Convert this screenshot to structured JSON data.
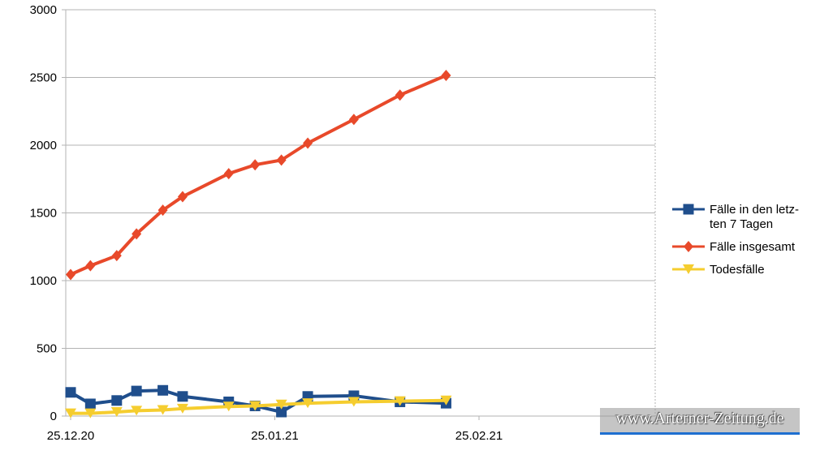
{
  "chart_data": {
    "type": "line",
    "x": [
      "25.12.20",
      "28.12.20",
      "01.01.21",
      "04.01.21",
      "08.01.21",
      "11.01.21",
      "18.01.21",
      "22.01.21",
      "26.01.21",
      "29.01.21",
      "05.02.21",
      "15.02.21",
      "22.02.21"
    ],
    "x_days": [
      0,
      3,
      7,
      10,
      14,
      17,
      24,
      28,
      32,
      36,
      43,
      50,
      57
    ],
    "xtick_labels": [
      "25.12.20",
      "25.01.21",
      "25.02.21"
    ],
    "ylim": [
      0,
      3000
    ],
    "yticks": [
      0,
      500,
      1000,
      1500,
      2000,
      2500,
      3000
    ],
    "grid": true,
    "legend_position": "right",
    "series": [
      {
        "name": "Fälle in den letz-ten 7 Tagen",
        "legend_lines": [
          "Fälle in den letz-",
          "ten 7 Tagen"
        ],
        "color": "#1f4e8c",
        "marker": "square",
        "values": [
          175,
          90,
          115,
          185,
          190,
          145,
          105,
          75,
          30,
          145,
          150,
          105,
          95
        ]
      },
      {
        "name": "Fälle insgesamt",
        "legend_lines": [
          "Fälle insgesamt"
        ],
        "color": "#e8492a",
        "marker": "diamond",
        "values": [
          1045,
          1110,
          1185,
          1345,
          1520,
          1620,
          1790,
          1855,
          1890,
          2015,
          2190,
          2370,
          2515
        ]
      },
      {
        "name": "Todesfälle",
        "legend_lines": [
          "Todesfälle"
        ],
        "color": "#f5cd2f",
        "marker": "triangle-down",
        "values": [
          20,
          20,
          30,
          40,
          45,
          55,
          70,
          75,
          85,
          95,
          105,
          110,
          115
        ]
      }
    ]
  },
  "watermark": {
    "text": "www.Arterner-Zeitung.de"
  }
}
